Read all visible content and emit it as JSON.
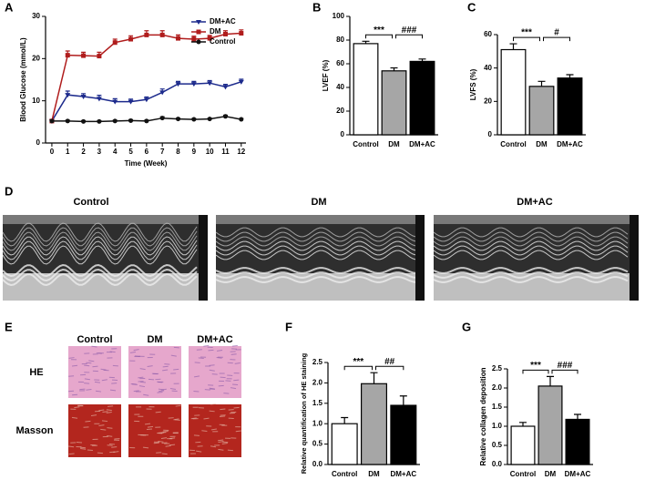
{
  "chart_data": [
    {
      "type": "line",
      "panel": "A",
      "xlabel": "Time (Week)",
      "ylabel": "Blood Glucose (mmol/L)",
      "x": [
        0,
        1,
        2,
        3,
        4,
        5,
        6,
        7,
        8,
        9,
        10,
        11,
        12
      ],
      "xlim": [
        -0.4,
        12.3
      ],
      "xticks": [
        0,
        1,
        2,
        3,
        4,
        5,
        6,
        7,
        8,
        9,
        10,
        11,
        12
      ],
      "ylim": [
        0,
        30
      ],
      "yticks": [
        0,
        10,
        20,
        30
      ],
      "legend": "upper right",
      "series": [
        {
          "name": "DM+AC",
          "color": "#1c2a8c",
          "marker": "triangle",
          "values": [
            5.2,
            11.4,
            11.0,
            10.5,
            9.8,
            9.8,
            10.3,
            12.0,
            14.0,
            14.0,
            14.2,
            13.3,
            14.5
          ],
          "errors": [
            0.3,
            0.9,
            0.7,
            0.8,
            0.7,
            0.6,
            0.6,
            0.8,
            0.6,
            0.6,
            0.6,
            0.6,
            0.6
          ]
        },
        {
          "name": "DM",
          "color": "#b01c1c",
          "marker": "square",
          "values": [
            5.2,
            20.8,
            20.7,
            20.6,
            23.8,
            24.6,
            25.6,
            25.6,
            24.8,
            24.6,
            24.8,
            25.8,
            26.0
          ],
          "errors": [
            0.3,
            1.0,
            0.8,
            0.9,
            0.8,
            0.8,
            1.0,
            1.0,
            0.8,
            0.7,
            0.7,
            0.8,
            0.8
          ]
        },
        {
          "name": "Control",
          "color": "#111111",
          "marker": "circle",
          "values": [
            5.2,
            5.2,
            5.1,
            5.1,
            5.2,
            5.3,
            5.2,
            5.9,
            5.7,
            5.6,
            5.7,
            6.3,
            5.6
          ],
          "errors": [
            0.2,
            0.2,
            0.2,
            0.2,
            0.2,
            0.2,
            0.2,
            0.3,
            0.2,
            0.2,
            0.2,
            0.3,
            0.2
          ]
        }
      ]
    },
    {
      "type": "bar",
      "panel": "B",
      "ylabel": "LVEF (%)",
      "categories": [
        "Control",
        "DM",
        "DM+AC"
      ],
      "values": [
        77,
        54,
        62
      ],
      "errors": [
        2,
        2.5,
        2
      ],
      "colors": [
        "#ffffff",
        "#a6a6a6",
        "#000000"
      ],
      "ylim": [
        0,
        100
      ],
      "yticks": [
        0,
        20,
        40,
        60,
        80,
        100
      ],
      "annotations": [
        {
          "label": "***",
          "from": 0,
          "to": 1
        },
        {
          "label": "###",
          "from": 1,
          "to": 2
        }
      ]
    },
    {
      "type": "bar",
      "panel": "C",
      "ylabel": "LVFS (%)",
      "categories": [
        "Control",
        "DM",
        "DM+AC"
      ],
      "values": [
        51,
        29,
        34
      ],
      "errors": [
        3.5,
        3,
        2
      ],
      "colors": [
        "#ffffff",
        "#a6a6a6",
        "#000000"
      ],
      "ylim": [
        0,
        60
      ],
      "yticks": [
        0,
        20,
        40,
        60
      ],
      "annotations": [
        {
          "label": "***",
          "from": 0,
          "to": 1
        },
        {
          "label": "#",
          "from": 1,
          "to": 2
        }
      ]
    },
    {
      "type": "bar",
      "panel": "F",
      "ylabel": "Relative quantification of HE staining",
      "categories": [
        "Control",
        "DM",
        "DM+AC"
      ],
      "values": [
        1.0,
        1.98,
        1.45
      ],
      "errors": [
        0.15,
        0.27,
        0.23
      ],
      "colors": [
        "#ffffff",
        "#a6a6a6",
        "#000000"
      ],
      "ylim": [
        0,
        2.5
      ],
      "yticks": [
        {
          "value": 0,
          "label": "0.0"
        },
        0.5,
        {
          "value": 1,
          "label": "1.0"
        },
        1.5,
        {
          "value": 2,
          "label": "2.0"
        },
        2.5
      ],
      "annotations": [
        {
          "label": "***",
          "from": 0,
          "to": 1
        },
        {
          "label": "##",
          "from": 1,
          "to": 2
        }
      ]
    },
    {
      "type": "bar",
      "panel": "G",
      "ylabel": "Relative collagen deposition",
      "categories": [
        "Control",
        "DM",
        "DM+AC"
      ],
      "values": [
        1.0,
        2.05,
        1.18
      ],
      "errors": [
        0.1,
        0.25,
        0.13
      ],
      "colors": [
        "#ffffff",
        "#a6a6a6",
        "#000000"
      ],
      "ylim": [
        0,
        2.5
      ],
      "yticks": [
        {
          "value": 0,
          "label": "0.0"
        },
        0.5,
        {
          "value": 1,
          "label": "1.0"
        },
        1.5,
        {
          "value": 2,
          "label": "2.0"
        },
        2.5
      ],
      "annotations": [
        {
          "label": "***",
          "from": 0,
          "to": 1
        },
        {
          "label": "###",
          "from": 1,
          "to": 2
        }
      ]
    }
  ],
  "panel_d": {
    "letter": "D",
    "titles": [
      "Control",
      "DM",
      "DM+AC"
    ]
  },
  "panel_e": {
    "letter": "E",
    "columns": [
      "Control",
      "DM",
      "DM+AC"
    ],
    "rows": [
      "HE",
      "Masson"
    ]
  }
}
